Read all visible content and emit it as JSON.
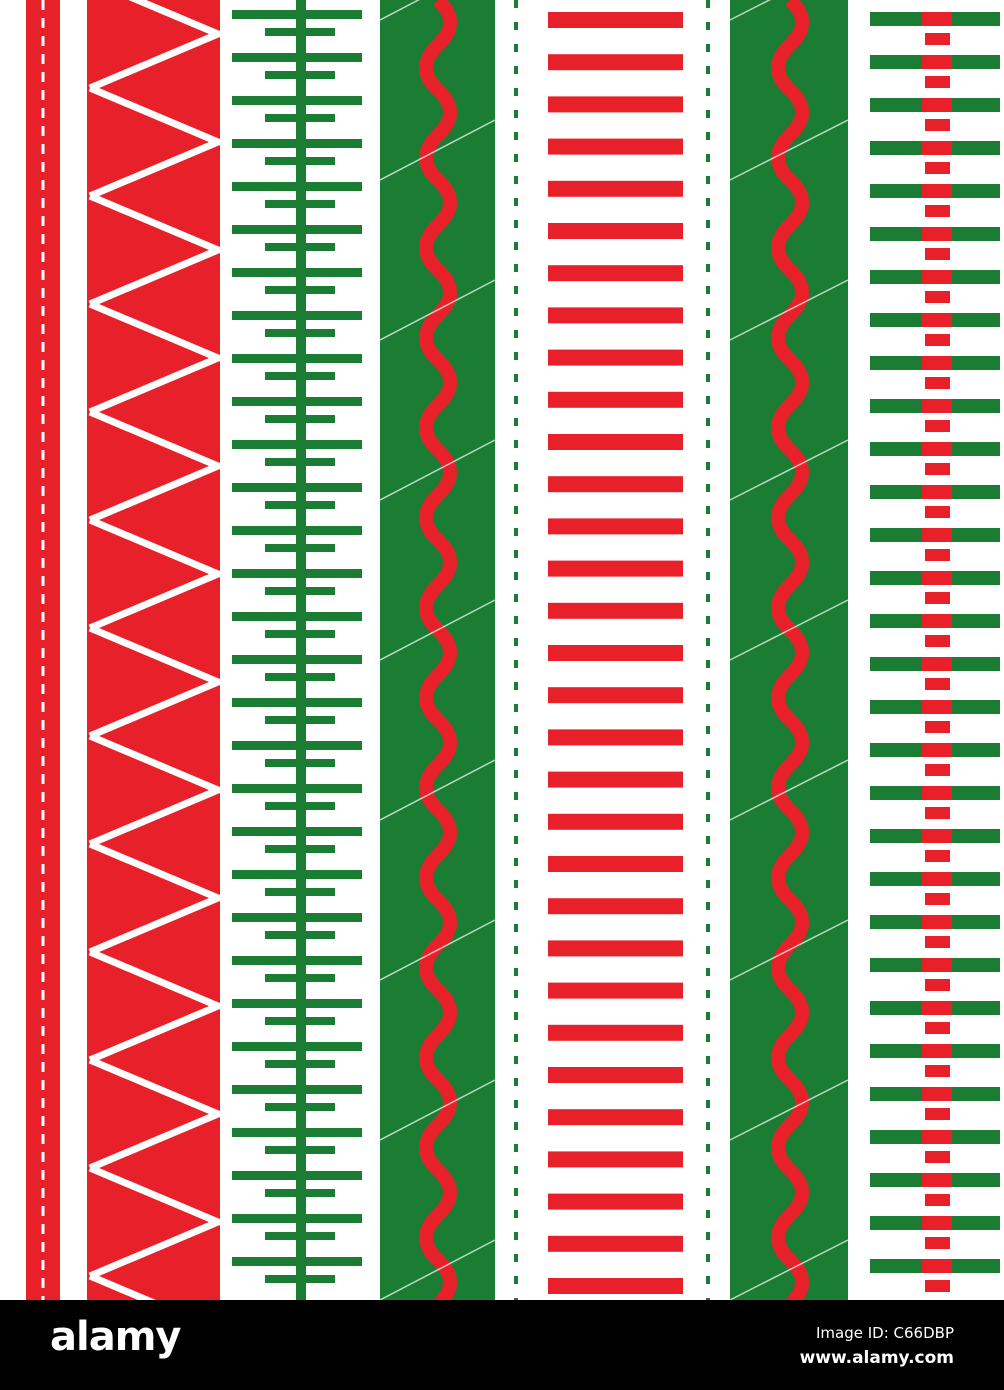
{
  "colors": {
    "red": "#e8202a",
    "green": "#1b7d34",
    "background": "#ffffff",
    "footer": "#000000"
  },
  "pattern": {
    "stripes": [
      "red-dashed-thin",
      "red-chevron-band",
      "green-fishbone",
      "green-band-red-wave",
      "red-bars-green-dashes",
      "green-band-red-wave",
      "green-bars-red-squares"
    ]
  },
  "footer": {
    "logo": "alamy",
    "image_id": "Image ID: C66DBP",
    "site": "www.alamy.com"
  }
}
